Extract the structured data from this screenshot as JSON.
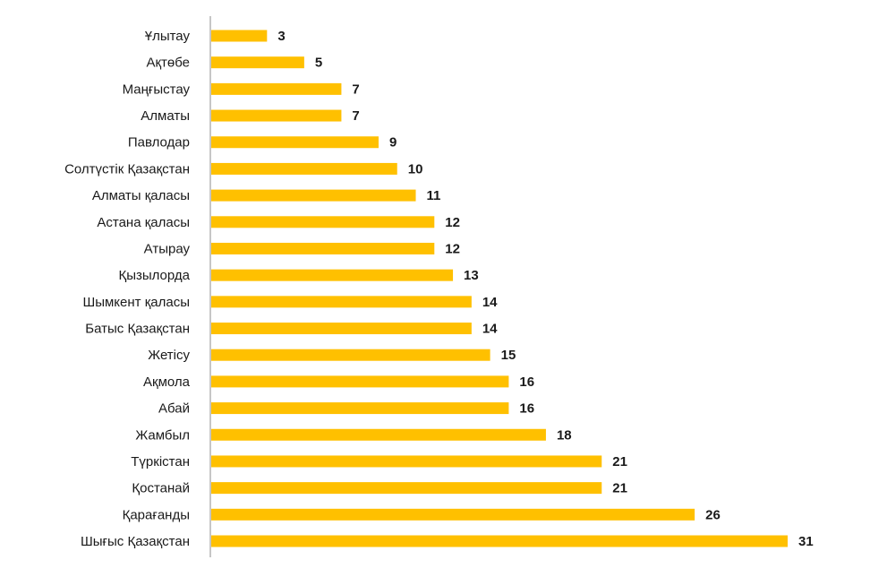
{
  "chart_data": {
    "type": "bar",
    "orientation": "horizontal",
    "categories": [
      "Ұлытау",
      "Ақтөбе",
      "Маңғыстау",
      "Алматы",
      "Павлодар",
      "Солтүстік Қазақстан",
      "Алматы қаласы",
      "Астана қаласы",
      "Атырау",
      "Қызылорда",
      "Шымкент қаласы",
      "Батыс Қазақстан",
      "Жетісу",
      "Ақмола",
      "Абай",
      "Жамбыл",
      "Түркістан",
      "Қостанай",
      "Қарағанды",
      "Шығыс  Қазақстан"
    ],
    "values": [
      3,
      5,
      7,
      7,
      9,
      10,
      11,
      12,
      12,
      13,
      14,
      14,
      15,
      16,
      16,
      18,
      21,
      21,
      26,
      31
    ],
    "title": "",
    "xlabel": "",
    "ylabel": "",
    "xlim": [
      0,
      31
    ],
    "grid": false,
    "legend": "none",
    "data_labels": true,
    "colors": {
      "bar": "#FFC000",
      "axis": "#8c8c8c",
      "text": "#1a1a1a"
    }
  }
}
